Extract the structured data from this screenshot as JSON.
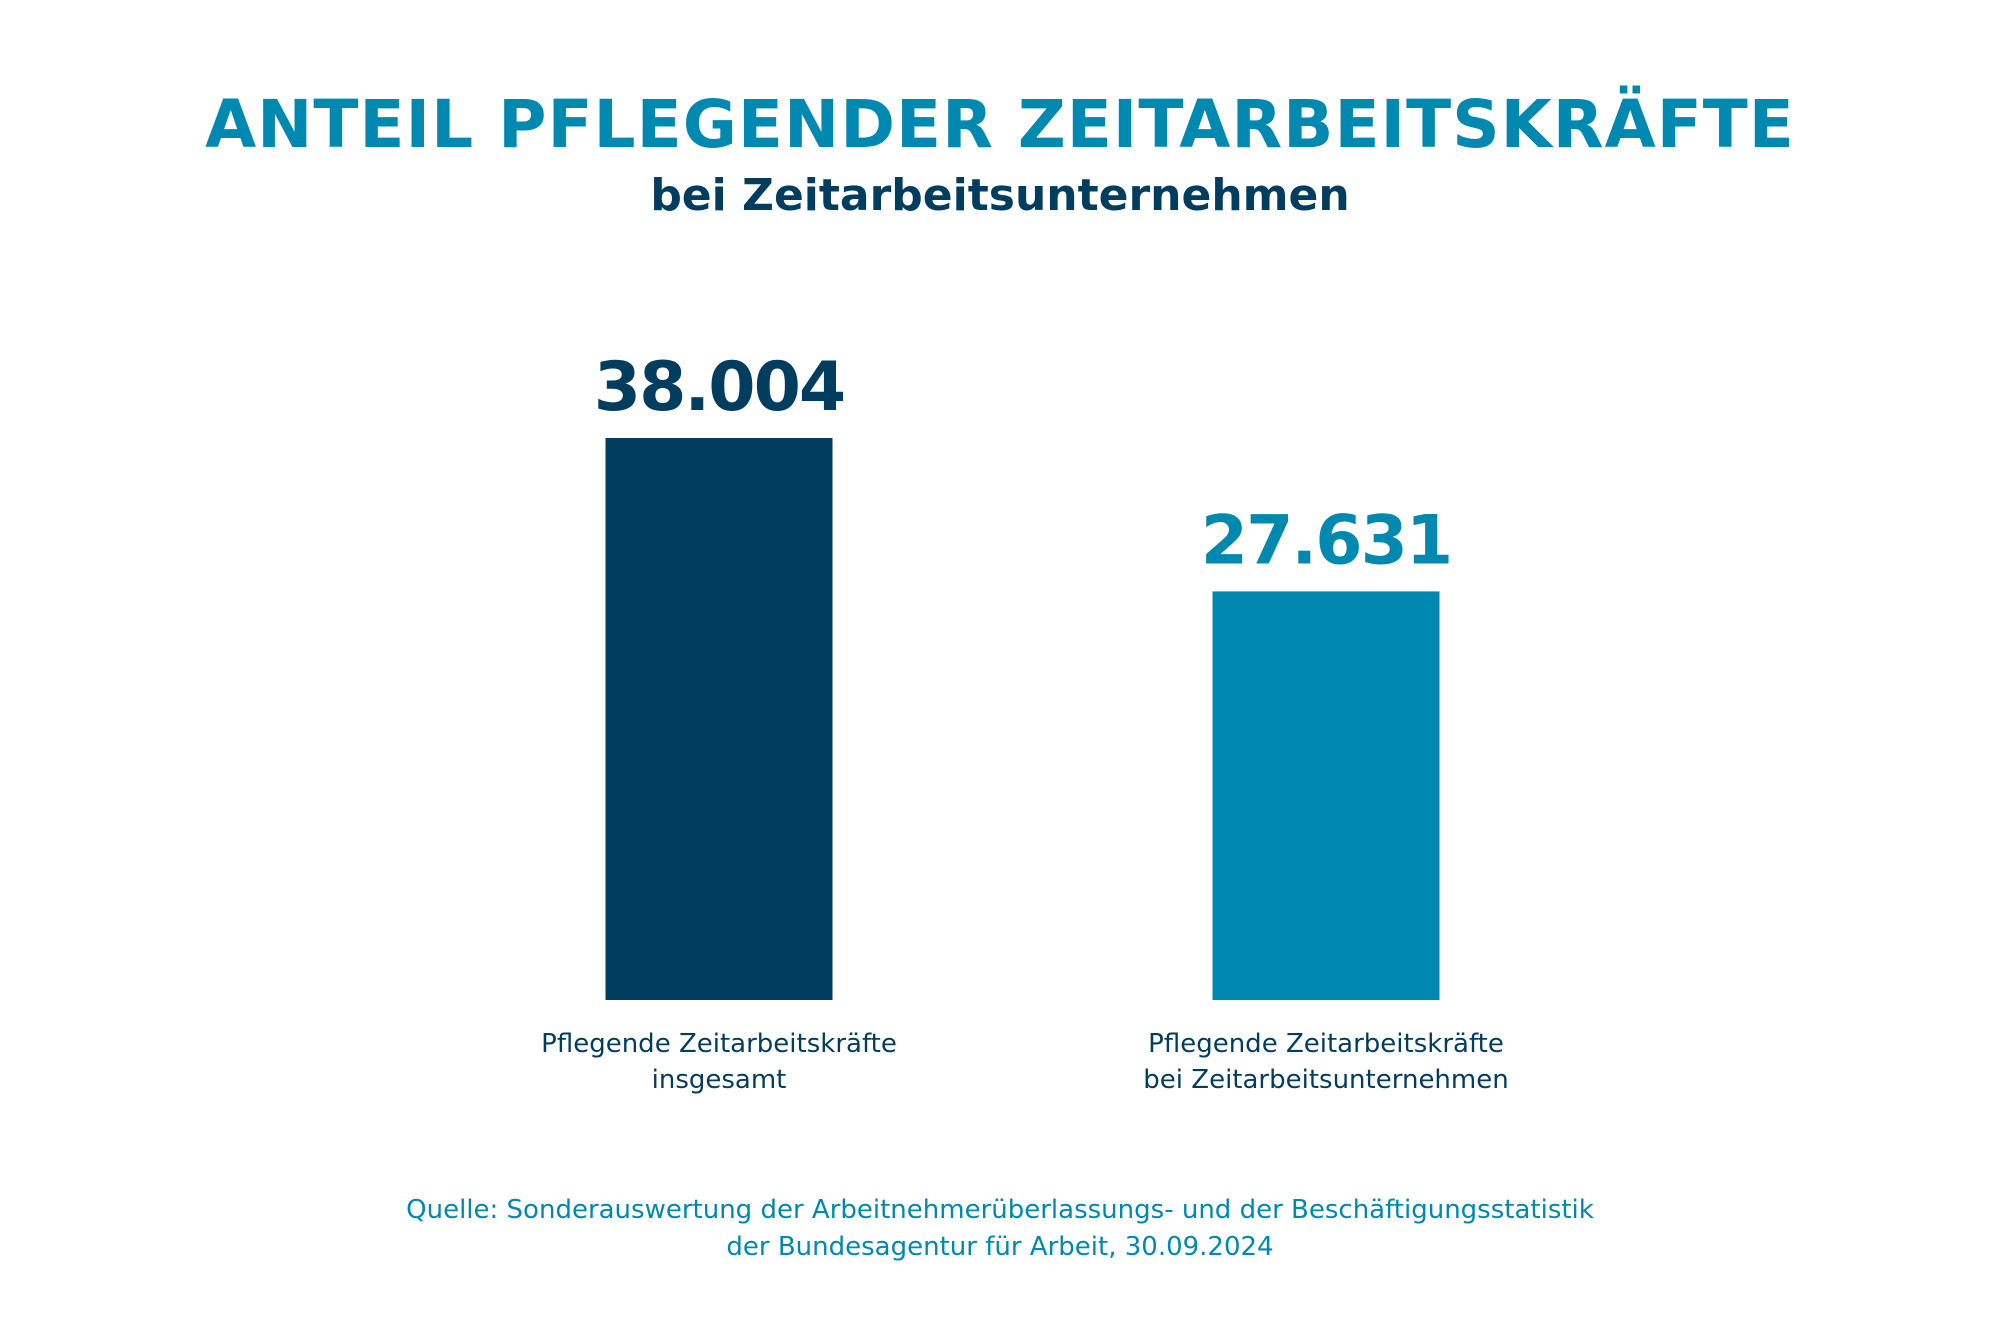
{
  "chart_data": {
    "type": "bar",
    "title": "ANTEIL PFLEGENDER ZEITARBEITSKRÄFTE",
    "subtitle": "bei Zeitarbeitsunternehmen",
    "categories": [
      {
        "lines": [
          "Pflegende Zeitarbeitskräfte",
          "insgesamt"
        ]
      },
      {
        "lines": [
          "Pflegende Zeitarbeitskräfte",
          "bei Zeitarbeitsunternehmen"
        ]
      }
    ],
    "values": [
      38004,
      27631
    ],
    "value_labels": [
      "38.004",
      "27.631"
    ],
    "bar_colors": [
      "#013d5e",
      "#0089b0"
    ],
    "label_colors": [
      "#013d5e",
      "#0089b0"
    ],
    "ylim": [
      0,
      38004
    ],
    "grid": false,
    "xlabel": "",
    "ylabel": ""
  },
  "source": {
    "line1": "Quelle: Sonderauswertung der Arbeitnehmerüberlassungs- und der Beschäftigungsstatistik",
    "line2": "der Bundesagentur für Arbeit, 30.09.2024"
  },
  "colors": {
    "title": "#0089b0",
    "subtitle": "#013d5e",
    "category_text": "#013d5e",
    "source_text": "#0089b0"
  }
}
